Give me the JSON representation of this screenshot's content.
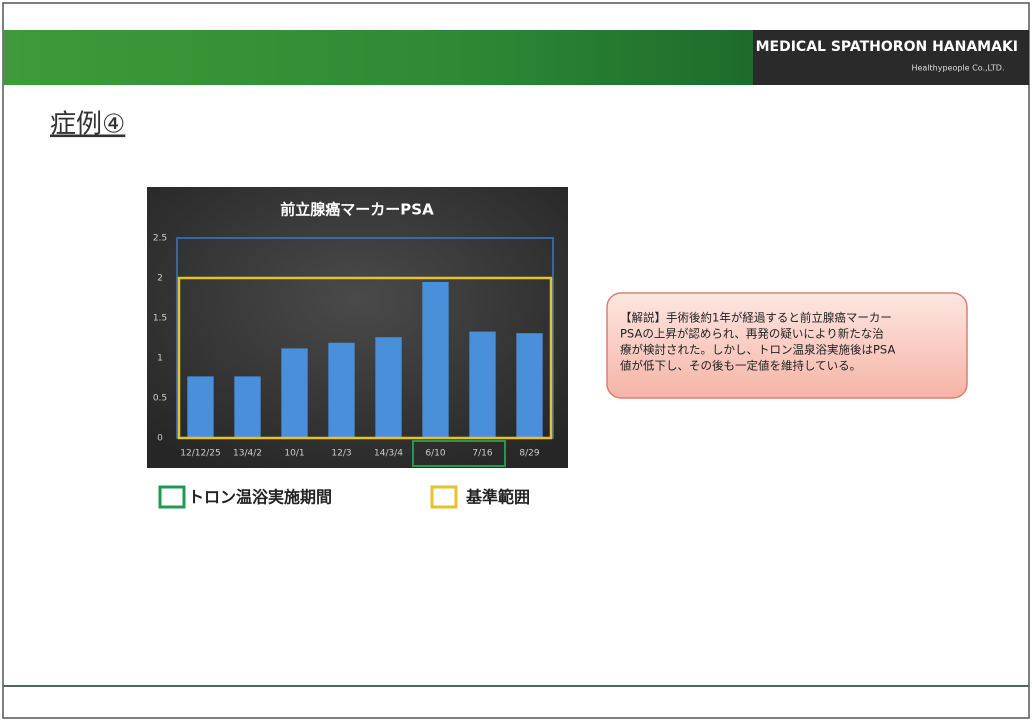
{
  "header": {
    "company": "MEDICAL SPATHORON HANAMAKI",
    "subtitle": "Healthypeople Co.,LTD."
  },
  "slide_title": "症例④",
  "chart_data": {
    "type": "bar",
    "title": "前立腺癌マーカーPSA",
    "categories": [
      "12/12/25",
      "13/4/2",
      "10/1",
      "12/3",
      "14/3/4",
      "6/10",
      "7/16",
      "8/29"
    ],
    "values": [
      0.77,
      0.77,
      1.12,
      1.19,
      1.26,
      1.95,
      1.33,
      1.31
    ],
    "color": "#4a8fd9",
    "ylim": [
      0,
      2.5
    ],
    "yticks": [
      0,
      0.5,
      1,
      1.5,
      2,
      2.5
    ],
    "period": {
      "name": "トロン温浴実施期間",
      "color": "#1f9a50",
      "from_index": 5,
      "to_index": 6
    },
    "reference": {
      "name": "基準範囲",
      "color": "#e8c12a",
      "range": [
        0,
        2
      ]
    }
  },
  "note": {
    "lines": [
      "【解説】手術後約1年が経過すると前立腺癌マーカー",
      "PSAの上昇が認められ、再発の疑いにより新たな治",
      "療が検討された。しかし、トロン温泉浴実施後はPSA",
      "値が低下し、その後も一定値を維持している。"
    ]
  }
}
